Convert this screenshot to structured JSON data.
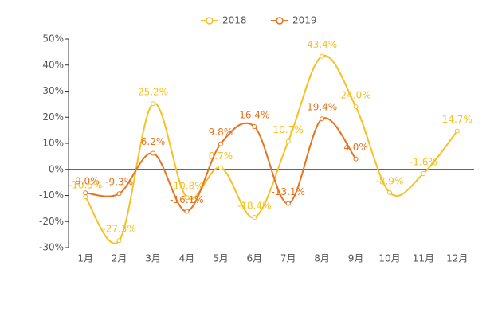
{
  "chart_data": {
    "type": "line",
    "categories": [
      "1月",
      "2月",
      "3月",
      "4月",
      "5月",
      "6月",
      "7月",
      "8月",
      "9月",
      "10月",
      "11月",
      "12月"
    ],
    "series": [
      {
        "name": "2018",
        "color": "#f8c022",
        "values": [
          -10.5,
          -27.3,
          25.2,
          -10.8,
          0.7,
          -18.4,
          10.7,
          43.4,
          24.0,
          -8.9,
          -1.6,
          14.7
        ],
        "value_labels": [
          "-10.5%",
          "-27.3%",
          "25.2%",
          "-10.8%",
          "0.7%",
          "-18.4%",
          "10.7%",
          "43.4%",
          "24.0%",
          "-8.9%",
          "-1.6%",
          "14.7%"
        ]
      },
      {
        "name": "2019",
        "color": "#e8731e",
        "values": [
          -9.0,
          -9.3,
          6.2,
          -16.1,
          9.8,
          16.4,
          -13.1,
          19.4,
          4.0,
          null,
          null,
          null
        ],
        "value_labels": [
          "-9.0%",
          "-9.3%",
          "6.2%",
          "-16.1%",
          "9.8%",
          "16.4%",
          "-13.1%",
          "19.4%",
          "4.0%",
          null,
          null,
          null
        ]
      }
    ],
    "ylim": [
      -30,
      50
    ],
    "yticks": [
      {
        "value": -30,
        "label": "-30%"
      },
      {
        "value": -20,
        "label": "-20%"
      },
      {
        "value": -10,
        "label": "-10%"
      },
      {
        "value": 0,
        "label": "0%"
      },
      {
        "value": 10,
        "label": "10%"
      },
      {
        "value": 20,
        "label": "20%"
      },
      {
        "value": 30,
        "label": "30%"
      },
      {
        "value": 40,
        "label": "40%"
      },
      {
        "value": 50,
        "label": "50%"
      }
    ],
    "legend": "top"
  }
}
